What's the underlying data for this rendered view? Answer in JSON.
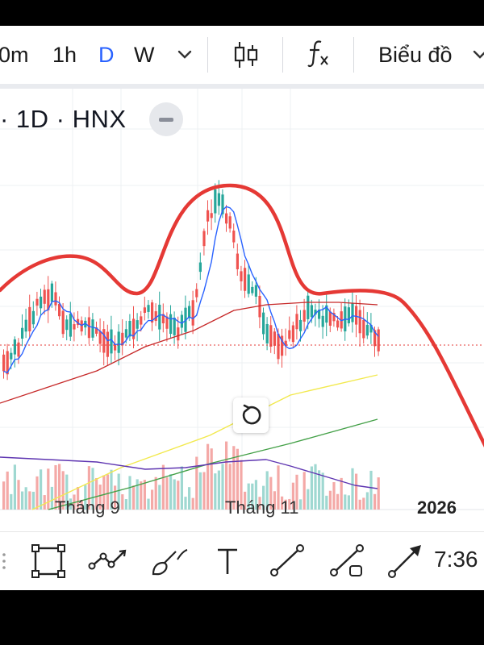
{
  "toolbar": {
    "intervals": [
      {
        "label": "0m",
        "active": false
      },
      {
        "label": "1h",
        "active": false
      },
      {
        "label": "D",
        "active": true
      },
      {
        "label": "W",
        "active": false
      }
    ],
    "more_intervals_icon": "chevron-down-icon",
    "chart_type_icon": "candlestick-icon",
    "indicators_icon": "fx-icon",
    "chart_menu_label": "Biểu đồ"
  },
  "symbol_info": "· 1D · HNX",
  "chart_data": {
    "type": "candlestick",
    "x_tick_labels": [
      "Tháng 9",
      "Tháng 11",
      "2026"
    ],
    "colors": {
      "up": "#26a69a",
      "down": "#ef5350",
      "ma_short": "#2962ff",
      "ma_mid": "#c62828",
      "ma_long_yellow": "#f2e94e",
      "ma_long_green": "#43a047",
      "volume_ma": "#5e35b1",
      "annotation": "#e53935",
      "last_price_line": "#e53935"
    },
    "annotation": "hand-drawn red curve tracing a head-and-shoulders pattern and extending downward",
    "grid": true
  },
  "bottom_bar": {
    "tools": [
      "rectangle-icon",
      "polyline-icon",
      "brush-icon",
      "text-icon",
      "trend-line-icon",
      "ray-icon",
      "arrow-icon"
    ],
    "time": "7:36"
  }
}
